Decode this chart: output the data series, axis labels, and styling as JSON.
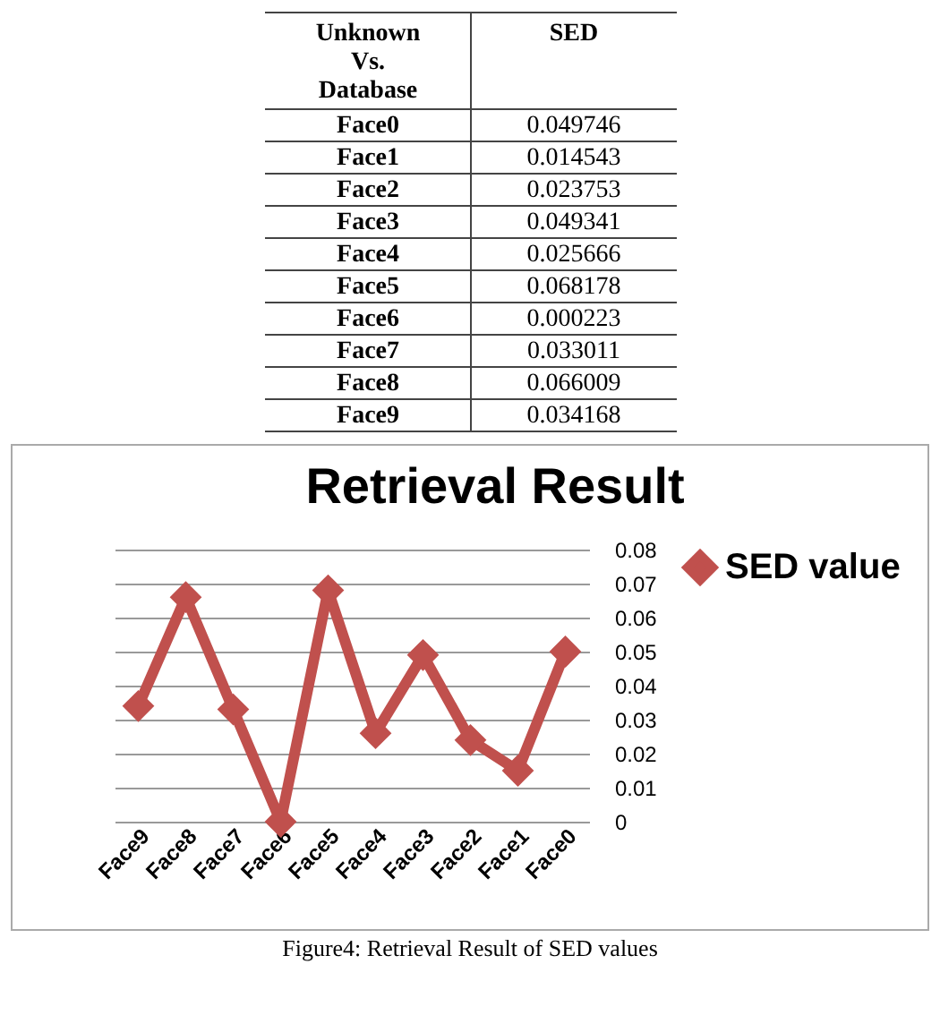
{
  "chart_data": [
    {
      "type": "other",
      "annotations": [
        "Unknown Vs. Database",
        "SED"
      ],
      "categories": [
        "Face0",
        "Face1",
        "Face2",
        "Face3",
        "Face4",
        "Face5",
        "Face6",
        "Face7",
        "Face8",
        "Face9"
      ],
      "values": [
        0.049746,
        0.014543,
        0.023753,
        0.049341,
        0.025666,
        0.068178,
        0.000223,
        0.033011,
        0.066009,
        0.034168
      ],
      "data_labels": true
    },
    {
      "type": "line",
      "title": "Retrieval Result",
      "categories": [
        "Face9",
        "Face8",
        "Face7",
        "Face6",
        "Face5",
        "Face4",
        "Face3",
        "Face2",
        "Face1",
        "Face0"
      ],
      "series": [
        {
          "name": "SED value",
          "color": "#c0504d",
          "values": [
            0.034,
            0.066,
            0.033,
            0.0,
            0.068,
            0.026,
            0.049,
            0.024,
            0.015,
            0.05
          ]
        }
      ],
      "ylim": [
        0,
        0.08
      ],
      "yticks": [
        0,
        0.01,
        0.02,
        0.03,
        0.04,
        0.05,
        0.06,
        0.07,
        0.08
      ],
      "grid": "y",
      "legend": "right",
      "marker": "diamond",
      "annotations": [
        "Figure4: Retrieval Result of SED values"
      ]
    }
  ]
}
